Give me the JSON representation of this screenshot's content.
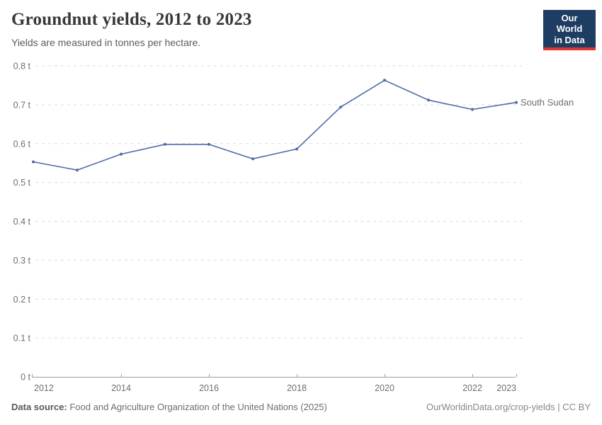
{
  "header": {
    "title": "Groundnut yields, 2012 to 2023",
    "subtitle": "Yields are measured in tonnes per hectare.",
    "logo": {
      "line1": "Our World",
      "line2": "in Data",
      "bg_color": "#1d3d63",
      "accent_color": "#dc3a31"
    }
  },
  "footer": {
    "source_label": "Data source:",
    "source_text": " Food and Agriculture Organization of the United Nations (2025)",
    "credit": "OurWorldinData.org/crop-yields | CC BY"
  },
  "chart_data": {
    "type": "line",
    "title": "Groundnut yields, 2012 to 2023",
    "subtitle": "Yields are measured in tonnes per hectare.",
    "xlabel": "",
    "ylabel": "tonnes per hectare",
    "x": [
      2012,
      2013,
      2014,
      2015,
      2016,
      2017,
      2018,
      2019,
      2020,
      2021,
      2022,
      2023
    ],
    "series": [
      {
        "name": "South Sudan",
        "color": "#4c6ba9",
        "values": [
          0.553,
          0.532,
          0.573,
          0.598,
          0.598,
          0.561,
          0.586,
          0.694,
          0.763,
          0.712,
          0.688,
          0.706
        ]
      }
    ],
    "ylim": [
      0,
      0.8
    ],
    "yticks": [
      {
        "v": 0.0,
        "label": "0 t"
      },
      {
        "v": 0.1,
        "label": "0.1 t"
      },
      {
        "v": 0.2,
        "label": "0.2 t"
      },
      {
        "v": 0.3,
        "label": "0.3 t"
      },
      {
        "v": 0.4,
        "label": "0.4 t"
      },
      {
        "v": 0.5,
        "label": "0.5 t"
      },
      {
        "v": 0.6,
        "label": "0.6 t"
      },
      {
        "v": 0.7,
        "label": "0.7 t"
      },
      {
        "v": 0.8,
        "label": "0.8 t"
      }
    ],
    "xticks": [
      2012,
      2014,
      2016,
      2018,
      2020,
      2022,
      2023
    ],
    "grid": "horizontal-dashed",
    "grid_color": "#dcdcdc",
    "axis_color": "#a1a1a1",
    "tick_label_color": "#6e6e6e",
    "legend_position": "end-of-line-label",
    "marker": "dot"
  }
}
